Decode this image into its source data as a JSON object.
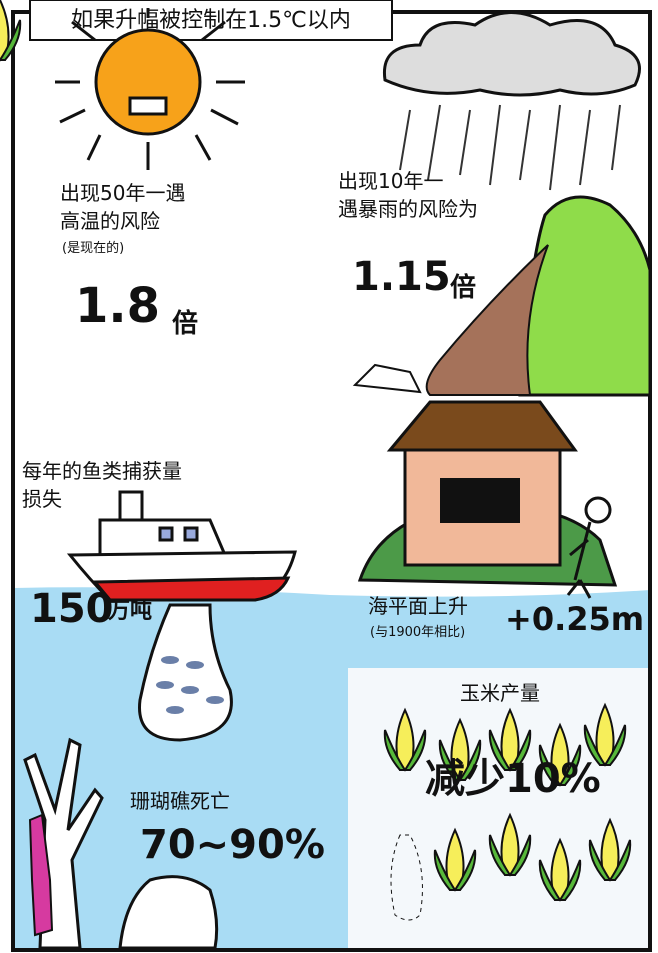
{
  "header": {
    "title": "如果升幅被控制在1.5℃以内"
  },
  "heat": {
    "line1": "出现50年一遇",
    "line2": "高温的风险",
    "note": "(是现在的)",
    "number": "1.8",
    "unit": "倍"
  },
  "rain": {
    "line1": "出现10年一",
    "line2": "遇暴雨的风险为",
    "number": "1.15",
    "unit": "倍"
  },
  "fish": {
    "line1": "每年的鱼类捕获量",
    "line2": "损失",
    "number": "150",
    "unit": "万吨"
  },
  "sea": {
    "line1": "海平面上升",
    "note": "(与1900年相比)",
    "number": "+0.25m"
  },
  "corn": {
    "line1": "玉米产量",
    "number": "减少10%"
  },
  "coral": {
    "line1": "珊瑚礁死亡",
    "number": "70~90%"
  }
}
